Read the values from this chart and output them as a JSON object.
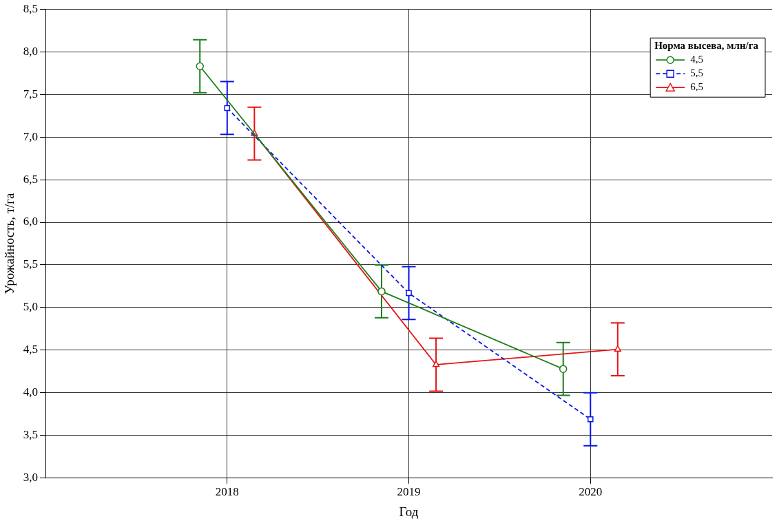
{
  "chart_data": {
    "type": "line",
    "xlabel": "Год",
    "ylabel": "Урожайность, т/га",
    "legend_title": "Норма высева, млн/га",
    "legend": "top right",
    "grid": true,
    "categories": [
      "2018",
      "2019",
      "2020"
    ],
    "ylim": [
      3.0,
      8.5
    ],
    "yticks": [
      {
        "value": 3.0,
        "label": "3,0"
      },
      {
        "value": 3.5,
        "label": "3,5"
      },
      {
        "value": 4.0,
        "label": "4,0"
      },
      {
        "value": 4.5,
        "label": "4,5"
      },
      {
        "value": 5.0,
        "label": "5,0"
      },
      {
        "value": 5.5,
        "label": "5,5"
      },
      {
        "value": 6.0,
        "label": "6,0"
      },
      {
        "value": 6.5,
        "label": "6,5"
      },
      {
        "value": 7.0,
        "label": "7,0"
      },
      {
        "value": 7.5,
        "label": "7,5"
      },
      {
        "value": 8.0,
        "label": "8,0"
      },
      {
        "value": 8.5,
        "label": "8,5"
      }
    ],
    "series": [
      {
        "name": "4,5",
        "color": "#1a7f1a",
        "marker": "circle",
        "line_style": "solid",
        "values": [
          7.83,
          5.19,
          4.28
        ],
        "errors": [
          0.31,
          0.31,
          0.31
        ]
      },
      {
        "name": "5,5",
        "color": "#0a14e6",
        "marker": "square",
        "line_style": "dashed",
        "values": [
          7.34,
          5.17,
          3.69
        ],
        "errors": [
          0.31,
          0.31,
          0.31
        ]
      },
      {
        "name": "6,5",
        "color": "#e61414",
        "marker": "triangle",
        "line_style": "solid",
        "values": [
          7.04,
          4.33,
          4.51
        ],
        "errors": [
          0.31,
          0.31,
          0.31
        ]
      }
    ]
  }
}
